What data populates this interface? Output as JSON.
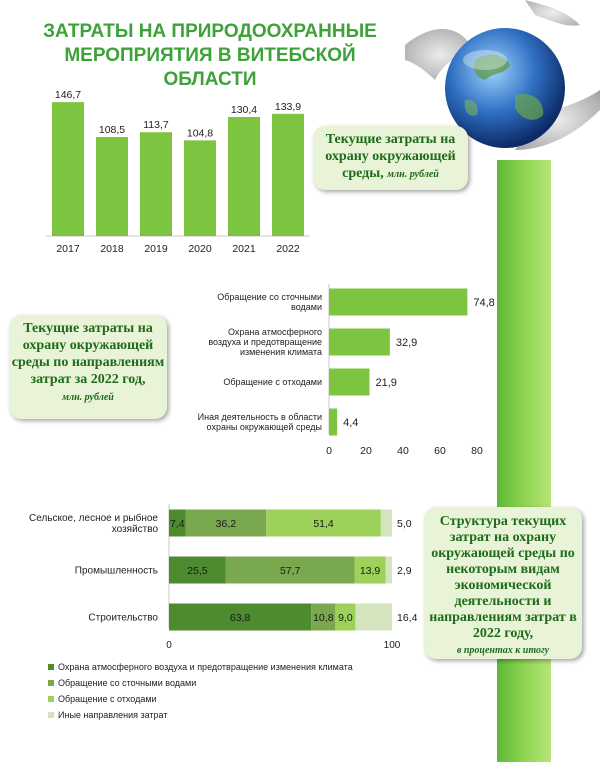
{
  "title": "ЗАТРАТЫ НА ПРИРОДООХРАННЫЕ МЕРОПРИЯТИЯ В ВИТЕБСКОЙ ОБЛАСТИ",
  "callouts": {
    "c1_text": "Текущие затраты на охрану окружающей среды,",
    "c1_unit": "млн. рублей",
    "c2_text": "Текущие затраты на охрану окружающей среды по направлениям затрат за 2022 год,",
    "c2_unit": "млн. рублей",
    "c3_text": "Структура текущих затрат на охрану окружающей среды по некоторым видам экономической деятельности и направлениям затрат в 2022 году,",
    "c3_unit": "в процентах к итогу"
  },
  "colors": {
    "bar_green": "#7dc540",
    "stack": [
      "#4e8a2e",
      "#7aa84e",
      "#9dd15a",
      "#d4e4bf"
    ]
  },
  "chart_data": [
    {
      "type": "bar",
      "categories": [
        "2017",
        "2018",
        "2019",
        "2020",
        "2021",
        "2022"
      ],
      "values": [
        146.7,
        108.5,
        113.7,
        104.8,
        130.4,
        133.9
      ],
      "labels": [
        "146,7",
        "108,5",
        "113,7",
        "104,8",
        "130,4",
        "133,9"
      ],
      "ylim": [
        0,
        160
      ]
    },
    {
      "type": "bar",
      "orientation": "horizontal",
      "categories": [
        [
          "Обращение со сточными",
          "водами"
        ],
        [
          "Охрана атмосферного",
          "воздуха и предотвращение",
          "изменения климата"
        ],
        [
          "Обращение с отходами"
        ],
        [
          "Иная деятельность в области",
          "охраны окружающей среды"
        ]
      ],
      "values": [
        74.8,
        32.9,
        21.9,
        4.4
      ],
      "labels": [
        "74,8",
        "32,9",
        "21,9",
        "4,4"
      ],
      "xlim": [
        0,
        80
      ],
      "ticks": [
        "0",
        "20",
        "40",
        "60",
        "80"
      ]
    },
    {
      "type": "bar",
      "orientation": "horizontal",
      "stacked": true,
      "categories": [
        [
          "Сельское, лесное и рыбное",
          "хозяйство"
        ],
        [
          "Промышленность"
        ],
        [
          "Строительство"
        ]
      ],
      "series": [
        {
          "name": "Охрана атмосферного воздуха и предотвращение изменения климата",
          "values": [
            7.4,
            25.5,
            63.8
          ],
          "labels": [
            "7,4",
            "25,5",
            "63,8"
          ]
        },
        {
          "name": "Обращение со сточными водами",
          "values": [
            36.2,
            57.7,
            10.8
          ],
          "labels": [
            "36,2",
            "57,7",
            "10,8"
          ]
        },
        {
          "name": "Обращение с отходами",
          "values": [
            51.4,
            13.9,
            9.0
          ],
          "labels": [
            "51,4",
            "13,9",
            "9,0"
          ]
        },
        {
          "name": "Иные направления затрат",
          "values": [
            5.0,
            2.9,
            16.4
          ],
          "labels": [
            "5,0",
            "2,9",
            "16,4"
          ]
        }
      ],
      "xlim": [
        0,
        100
      ],
      "ticks": [
        "0",
        "100"
      ]
    }
  ]
}
